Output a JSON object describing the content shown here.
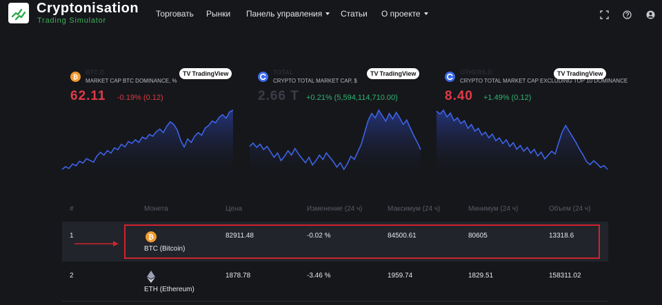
{
  "header": {
    "brand_title": "Cryptonisation",
    "brand_subtitle": "Trading Simulator",
    "nav": [
      {
        "label": "Торговать"
      },
      {
        "label": "Рынки"
      },
      {
        "label": "Панель управления",
        "dropdown": true
      },
      {
        "label": "Статьи"
      },
      {
        "label": "О проекте",
        "dropdown": true
      }
    ],
    "icons": [
      "fullscreen-icon",
      "help-icon",
      "account-icon"
    ]
  },
  "widgets": [
    {
      "name": "BTC.D",
      "description": "MARKET CAP BTC DOMINANCE, %",
      "badge": "TradingView",
      "value": "62.11",
      "value_color": "#e03b46",
      "change": "-0.19% (0.12)",
      "change_color": "#e03b46",
      "coin_icon": "bitcoin-icon",
      "chart_data": {
        "type": "area",
        "values": [
          3.0,
          3.3,
          3.1,
          3.6,
          3.4,
          3.9,
          3.7,
          4.2,
          4.0,
          3.8,
          4.5,
          4.9,
          4.6,
          5.1,
          4.8,
          5.4,
          5.2,
          5.8,
          5.5,
          6.1,
          5.9,
          6.3,
          6.0,
          6.6,
          6.4,
          6.9,
          6.7,
          7.2,
          7.5,
          7.1,
          7.8,
          8.3,
          8.0,
          7.4,
          6.2,
          5.5,
          6.4,
          6.0,
          6.7,
          7.1,
          6.8,
          7.6,
          7.9,
          8.4,
          8.2,
          8.8,
          9.1,
          8.7,
          9.4,
          9.6
        ]
      }
    },
    {
      "name": "TOTAL",
      "description": "CRYPTO TOTAL MARKET CAP, $",
      "badge": "TradingView",
      "value": "2.66 T",
      "value_color": "#3b3d47",
      "change": "+0.21% (5,594,114,710.00)",
      "change_color": "#2fb572",
      "coin_icon": "crypto-total-icon",
      "chart_data": {
        "type": "area",
        "values": [
          6.2,
          6.5,
          6.1,
          6.4,
          5.9,
          6.2,
          5.7,
          5.2,
          5.6,
          4.9,
          5.3,
          5.8,
          5.4,
          6.0,
          5.5,
          5.1,
          4.7,
          5.2,
          4.5,
          4.9,
          5.4,
          5.0,
          5.6,
          5.2,
          4.8,
          4.3,
          4.7,
          4.1,
          4.6,
          5.3,
          5.0,
          5.7,
          6.4,
          7.5,
          8.6,
          9.2,
          8.8,
          9.5,
          9.0,
          8.5,
          9.2,
          8.7,
          9.3,
          8.8,
          8.2,
          8.6,
          7.9,
          7.2,
          6.6,
          5.9
        ]
      }
    },
    {
      "name": "OTHERS.D",
      "description": "CRYPTO TOTAL MARKET CAP EXCLUDING TOP 10 DOMINANCE",
      "badge": "TradingView",
      "value": "8.40",
      "value_color": "#e03b46",
      "change": "+1.49% (0.12)",
      "change_color": "#2fb572",
      "coin_icon": "others-icon",
      "chart_data": {
        "type": "area",
        "values": [
          9.6,
          9.3,
          9.7,
          9.0,
          9.4,
          8.6,
          8.9,
          8.3,
          8.6,
          7.8,
          8.2,
          7.5,
          7.8,
          7.1,
          7.4,
          6.8,
          7.2,
          6.5,
          6.8,
          6.2,
          6.6,
          5.9,
          6.3,
          5.6,
          6.0,
          5.4,
          5.8,
          5.2,
          5.6,
          4.9,
          5.3,
          4.6,
          5.0,
          5.4,
          5.1,
          6.3,
          7.4,
          8.1,
          7.5,
          6.9,
          6.3,
          5.6,
          5.0,
          4.3,
          4.0,
          4.4,
          4.1,
          3.7,
          3.9,
          3.5
        ]
      }
    }
  ],
  "table": {
    "headers": [
      "#",
      "Монета",
      "Цена",
      "Изменение (24 ч)",
      "Максимум (24 ч)",
      "Минимум (24 ч)",
      "Объем (24 ч)"
    ],
    "rows": [
      {
        "rank": "1",
        "coin": "BTC (Bitcoin)",
        "coin_icon": "bitcoin-icon",
        "price": "82911.48",
        "change": "-0.02 %",
        "high": "84500.61",
        "low": "80605",
        "volume": "13318.6"
      },
      {
        "rank": "2",
        "coin": "ETH (Ethereum)",
        "coin_icon": "ethereum-icon",
        "price": "1878.78",
        "change": "-3.46 %",
        "high": "1959.74",
        "low": "1829.51",
        "volume": "158311.02"
      }
    ]
  },
  "colors": {
    "accent_green": "#3cb05a",
    "negative": "#e03b46",
    "positive": "#2fb572",
    "chart_line": "#3d64e8",
    "highlight": "#d0232f"
  }
}
